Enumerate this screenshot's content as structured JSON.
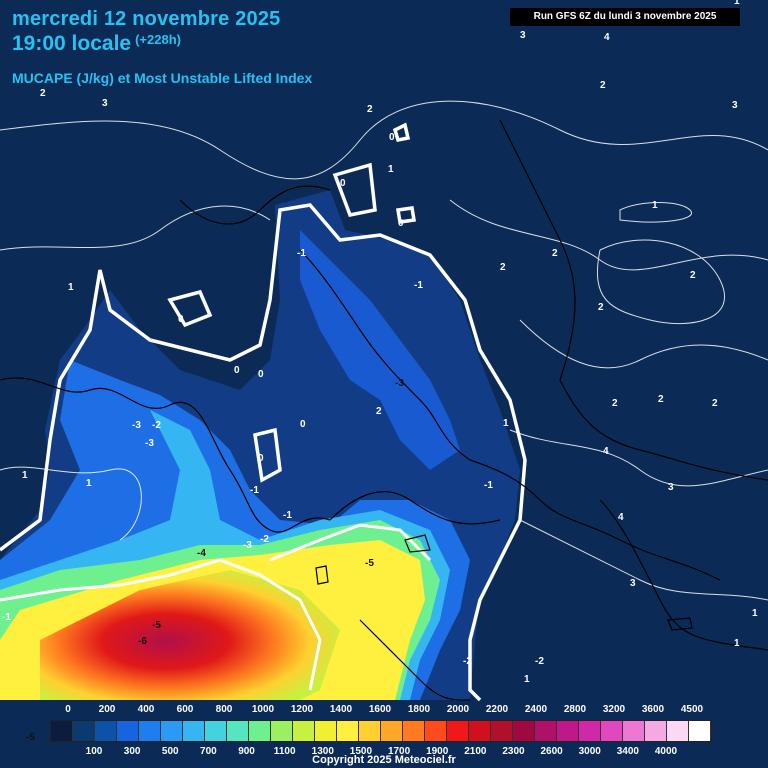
{
  "header": {
    "date_line": "mercredi 12 novembre 2025",
    "time_line": "19:00 locale",
    "lead_time": "(+228h)",
    "parameter": "MUCAPE (J/kg) et Most Unstable Lifted Index",
    "run_info": "Run GFS 6Z du lundi 3 novembre 2025"
  },
  "legend": {
    "top_labels": [
      "0",
      "200",
      "400",
      "600",
      "800",
      "1000",
      "1200",
      "1400",
      "1600",
      "1800",
      "2000",
      "2200",
      "2400",
      "2800",
      "3200",
      "3600",
      "4500"
    ],
    "bottom_labels": [
      "100",
      "300",
      "500",
      "700",
      "900",
      "1100",
      "1300",
      "1500",
      "1700",
      "1900",
      "2100",
      "2300",
      "2600",
      "3000",
      "3400",
      "4000"
    ],
    "side_label": "-5",
    "colors": [
      "#0b1c40",
      "#0b3a70",
      "#0b52a8",
      "#1565e0",
      "#1e7ef0",
      "#2a9af5",
      "#35b6f2",
      "#44d2e0",
      "#55e6c0",
      "#6ef090",
      "#9af060",
      "#c8f040",
      "#eef030",
      "#fff040",
      "#ffd030",
      "#ffa828",
      "#ff7a20",
      "#ff4a1c",
      "#f01818",
      "#d0101c",
      "#b0102a",
      "#a00840",
      "#b01068",
      "#c0188a",
      "#d028a8",
      "#e048c0",
      "#ec78d4",
      "#f4a8e4",
      "#fcd8f4",
      "#ffffff"
    ]
  },
  "map_labels": {
    "contour_values": [
      "3",
      "3",
      "4",
      "2",
      "2",
      "3",
      "2",
      "3",
      "0",
      "1",
      "0",
      "0",
      "1",
      "-1",
      "-1",
      "0",
      "0",
      "2",
      "-3",
      "-2",
      "-3",
      "-3",
      "0",
      "0",
      "-1",
      "1",
      "-1",
      "1",
      "-1",
      "-2",
      "-3",
      "-4",
      "-5",
      "-5",
      "-6",
      "-1",
      "1",
      "-2",
      "-2",
      "1",
      "-5",
      "-2",
      "2",
      "2",
      "2",
      "2",
      "2",
      "2",
      "4",
      "3",
      "4",
      "3",
      "1",
      "1",
      "1",
      "1",
      "1"
    ]
  },
  "footer": {
    "copyright": "Copyright 2025 Meteociel.fr"
  }
}
